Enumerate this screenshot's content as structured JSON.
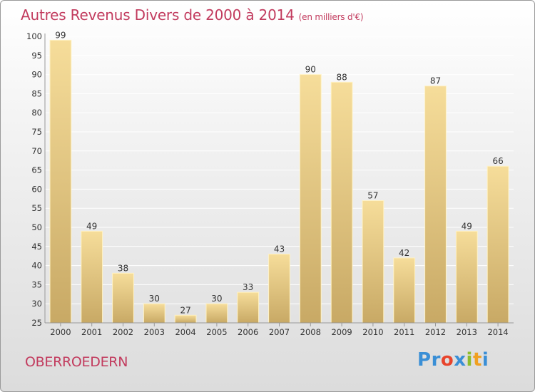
{
  "chart_data": {
    "type": "bar",
    "title": "Autres Revenus Divers de 2000 à 2014",
    "subtitle": "(en milliers d'€)",
    "categories": [
      "2000",
      "2001",
      "2002",
      "2003",
      "2004",
      "2005",
      "2006",
      "2007",
      "2008",
      "2009",
      "2010",
      "2011",
      "2012",
      "2013",
      "2014"
    ],
    "values": [
      99,
      49,
      38,
      30,
      27,
      30,
      33,
      43,
      90,
      88,
      57,
      42,
      87,
      49,
      66
    ],
    "ylim": [
      25,
      100
    ],
    "yticks": [
      25,
      30,
      35,
      40,
      45,
      50,
      55,
      60,
      65,
      70,
      75,
      80,
      85,
      90,
      95,
      100
    ],
    "grid": true,
    "xlabel": "",
    "ylabel": ""
  },
  "footer": {
    "commune": "OBERROEDERN",
    "brand": "Proxiti",
    "brand_letters": [
      "P",
      "r",
      "o",
      "x",
      "i",
      "t",
      "i"
    ]
  },
  "colors": {
    "title": "#c23b5e",
    "bar_light": "#f6dd9a",
    "bar_dark": "#c8a965",
    "grid": "#ffffff",
    "axis_text": "#333333",
    "brand": [
      "#3a8fd6",
      "#3a8fd6",
      "#e8442c",
      "#3a8fd6",
      "#8dbd2c",
      "#f0a020",
      "#3a8fd6"
    ]
  }
}
